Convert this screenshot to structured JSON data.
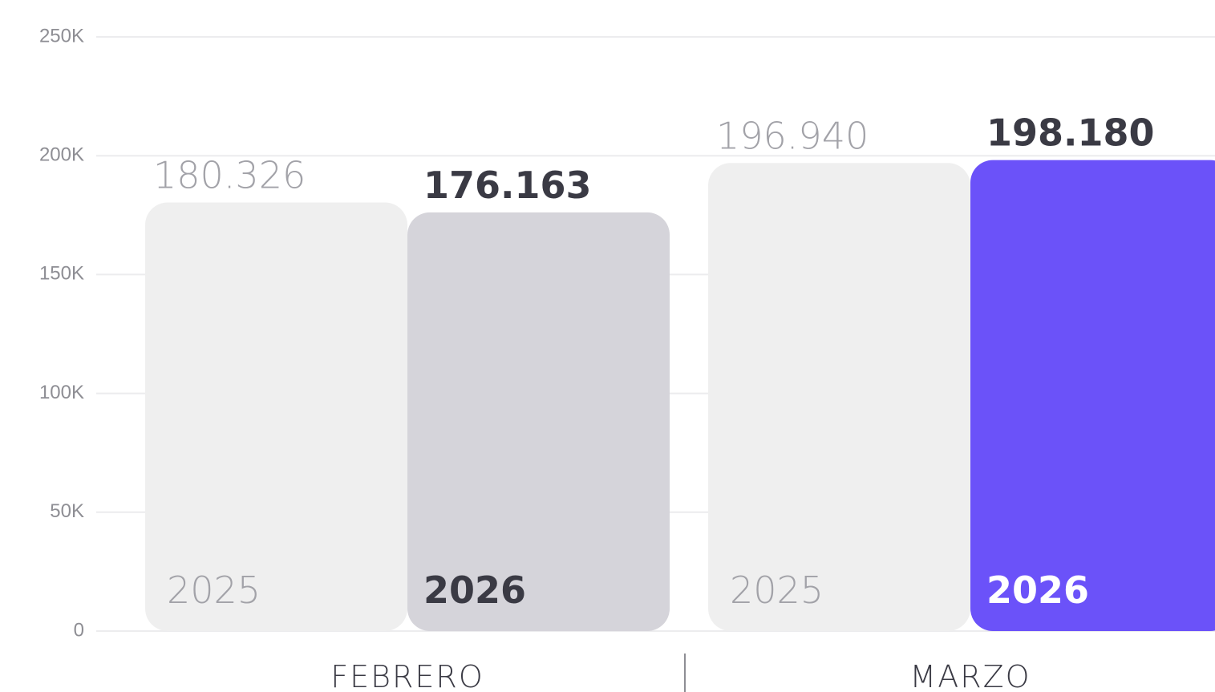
{
  "chart_data": {
    "type": "bar",
    "categories": [
      "FEBRERO",
      "MARZO"
    ],
    "series": [
      {
        "name": "2025",
        "color": "#efefef",
        "label_color": "#a2a2a8",
        "values": [
          180326,
          196940
        ],
        "value_labels": [
          "180.326",
          "196.940"
        ]
      },
      {
        "name": "2026",
        "colors": [
          "#d5d4da",
          "#6b52f9"
        ],
        "label_color": "#3a3a44",
        "name_colors": [
          "#3a3a44",
          "#ffffff"
        ],
        "values": [
          176163,
          198180
        ],
        "value_labels": [
          "176.163",
          "198.180"
        ]
      }
    ],
    "ylim": [
      0,
      250000
    ],
    "yticks": [
      0,
      {
        "value": 50000,
        "label": "50K"
      },
      {
        "value": 100000,
        "label": "100K"
      },
      {
        "value": 150000,
        "label": "150K"
      },
      {
        "value": 200000,
        "label": "200K"
      },
      {
        "value": 250000,
        "label": "250K"
      }
    ],
    "grid": true
  }
}
